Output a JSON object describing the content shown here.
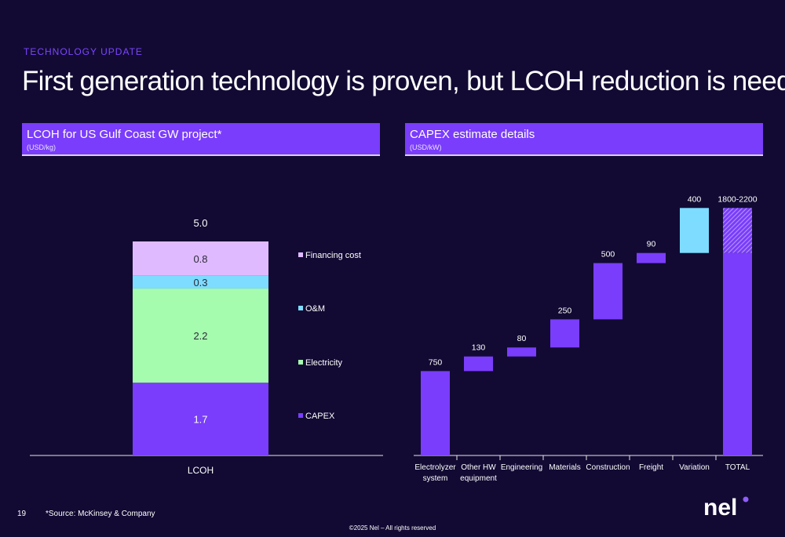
{
  "header": {
    "tag": "TECHNOLOGY UPDATE",
    "title": "First generation technology is proven, but LCOH reduction is needed"
  },
  "left_panel": {
    "title": "LCOH for US Gulf Coast GW project*",
    "subtitle": "(USD/kg)"
  },
  "right_panel": {
    "title": "CAPEX estimate details",
    "subtitle": "(USD/kW)"
  },
  "footer": {
    "page_number": "19",
    "source": "*Source: McKinsey & Company",
    "copyright": "©2025 Nel – All rights reserved",
    "logo_text": "nel"
  },
  "colors": {
    "background": "#120a33",
    "accent_purple": "#7a3dfb",
    "capex": "#7a3dfb",
    "electricity": "#a6fcae",
    "om": "#7ddcff",
    "financing": "#e0baff",
    "variation": "#7ddcff",
    "logo_dot": "#8f5cff"
  },
  "chart_data": [
    {
      "type": "bar",
      "subtype": "stacked",
      "title": "LCOH for US Gulf Coast GW project*",
      "unit": "(USD/kg)",
      "categories": [
        "LCOH"
      ],
      "total_label": "5.0",
      "series": [
        {
          "name": "CAPEX",
          "values": [
            1.7
          ],
          "label": "1.7",
          "color": "#7a3dfb"
        },
        {
          "name": "Electricity",
          "values": [
            2.2
          ],
          "label": "2.2",
          "color": "#a6fcae"
        },
        {
          "name": "O&M",
          "values": [
            0.3
          ],
          "label": "0.3",
          "color": "#7ddcff"
        },
        {
          "name": "Financing cost",
          "values": [
            0.8
          ],
          "label": "0.8",
          "color": "#e0baff"
        }
      ],
      "legend_position": "right",
      "grid": false
    },
    {
      "type": "bar",
      "subtype": "waterfall",
      "title": "CAPEX estimate details",
      "unit": "(USD/kW)",
      "categories": [
        "Electrolyzer system",
        "Other HW equipment",
        "Engineering",
        "Materials",
        "Construction",
        "Freight",
        "Variation",
        "TOTAL"
      ],
      "values": [
        750,
        130,
        80,
        250,
        500,
        90,
        400,
        null
      ],
      "labels": [
        "750",
        "130",
        "80",
        "250",
        "500",
        "90",
        "400",
        "1800-2200"
      ],
      "total_range": [
        1800,
        2200
      ],
      "ylim": [
        0,
        2200
      ],
      "grid": false
    }
  ]
}
